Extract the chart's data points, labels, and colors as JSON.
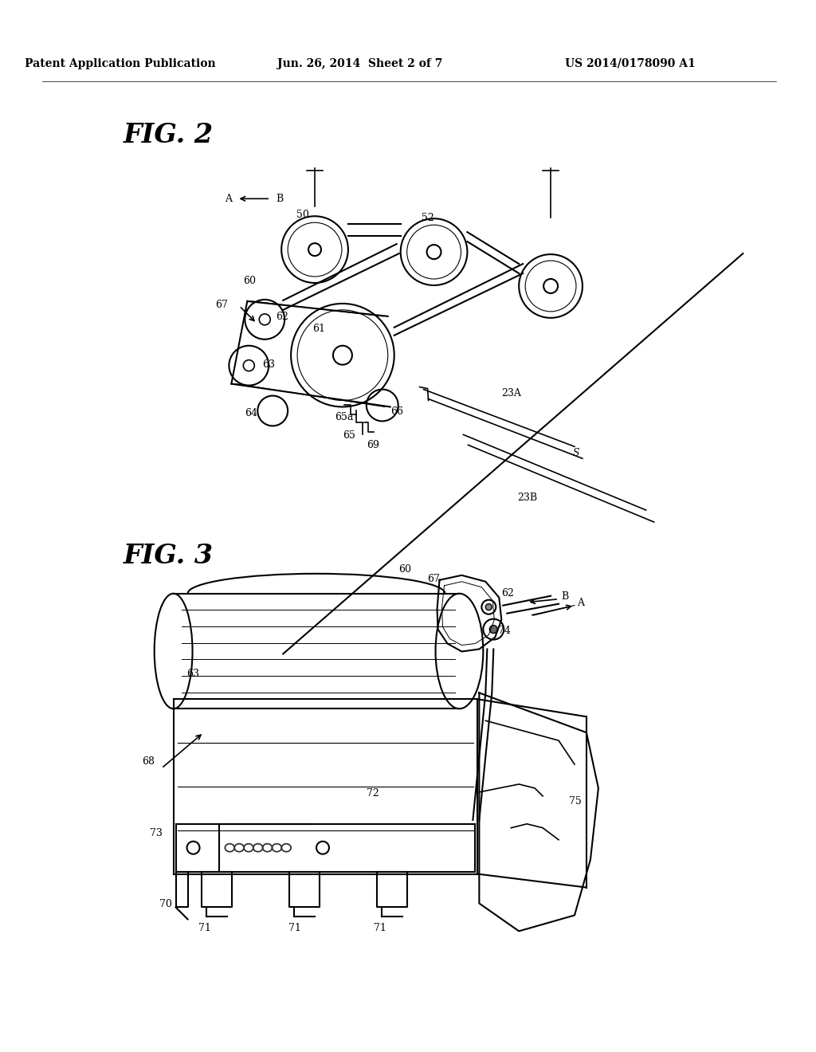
{
  "background_color": "#ffffff",
  "header_left": "Patent Application Publication",
  "header_center": "Jun. 26, 2014  Sheet 2 of 7",
  "header_right": "US 2014/0178090 A1",
  "fig2_label": "FIG. 2",
  "fig3_label": "FIG. 3"
}
